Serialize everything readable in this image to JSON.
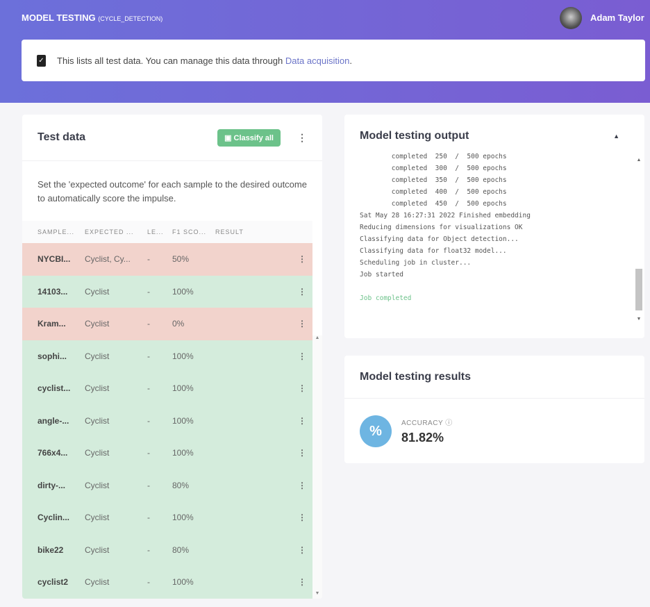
{
  "header": {
    "title": "MODEL TESTING",
    "project": "(CYCLE_DETECTION)",
    "user": "Adam Taylor"
  },
  "info": {
    "text": "This lists all test data. You can manage this data through ",
    "link": "Data acquisition",
    "end": "."
  },
  "test_data": {
    "title": "Test data",
    "classify_label": "Classify all",
    "description": "Set the 'expected outcome' for each sample to the desired outcome to automatically score the impulse.",
    "columns": [
      "SAMPLE...",
      "EXPECTED ...",
      "LE...",
      "F1 SCO...",
      "RESULT"
    ],
    "rows": [
      {
        "sample": "NYCBI...",
        "expected": "Cyclist, Cy...",
        "length": "-",
        "f1": "50%",
        "status": "bad"
      },
      {
        "sample": "14103...",
        "expected": "Cyclist",
        "length": "-",
        "f1": "100%",
        "status": "good"
      },
      {
        "sample": "Kram...",
        "expected": "Cyclist",
        "length": "-",
        "f1": "0%",
        "status": "bad"
      },
      {
        "sample": "sophi...",
        "expected": "Cyclist",
        "length": "-",
        "f1": "100%",
        "status": "good"
      },
      {
        "sample": "cyclist...",
        "expected": "Cyclist",
        "length": "-",
        "f1": "100%",
        "status": "good"
      },
      {
        "sample": "angle-...",
        "expected": "Cyclist",
        "length": "-",
        "f1": "100%",
        "status": "good"
      },
      {
        "sample": "766x4...",
        "expected": "Cyclist",
        "length": "-",
        "f1": "100%",
        "status": "good"
      },
      {
        "sample": "dirty-...",
        "expected": "Cyclist",
        "length": "-",
        "f1": "80%",
        "status": "good"
      },
      {
        "sample": "Cyclin...",
        "expected": "Cyclist",
        "length": "-",
        "f1": "100%",
        "status": "good"
      },
      {
        "sample": "bike22",
        "expected": "Cyclist",
        "length": "-",
        "f1": "80%",
        "status": "good"
      },
      {
        "sample": "cyclist2",
        "expected": "Cyclist",
        "length": "-",
        "f1": "100%",
        "status": "good"
      }
    ]
  },
  "output": {
    "title": "Model testing output",
    "log": [
      "        completed  250  /  500 epochs",
      "        completed  300  /  500 epochs",
      "        completed  350  /  500 epochs",
      "        completed  400  /  500 epochs",
      "        completed  450  /  500 epochs",
      "Sat May 28 16:27:31 2022 Finished embedding",
      "Reducing dimensions for visualizations OK",
      "Classifying data for Object detection...",
      "Classifying data for float32 model...",
      "Scheduling job in cluster...",
      "Job started",
      ""
    ],
    "done": "Job completed"
  },
  "results": {
    "title": "Model testing results",
    "metric_label": "ACCURACY ⓘ",
    "metric_value": "81.82%",
    "icon": "%"
  }
}
